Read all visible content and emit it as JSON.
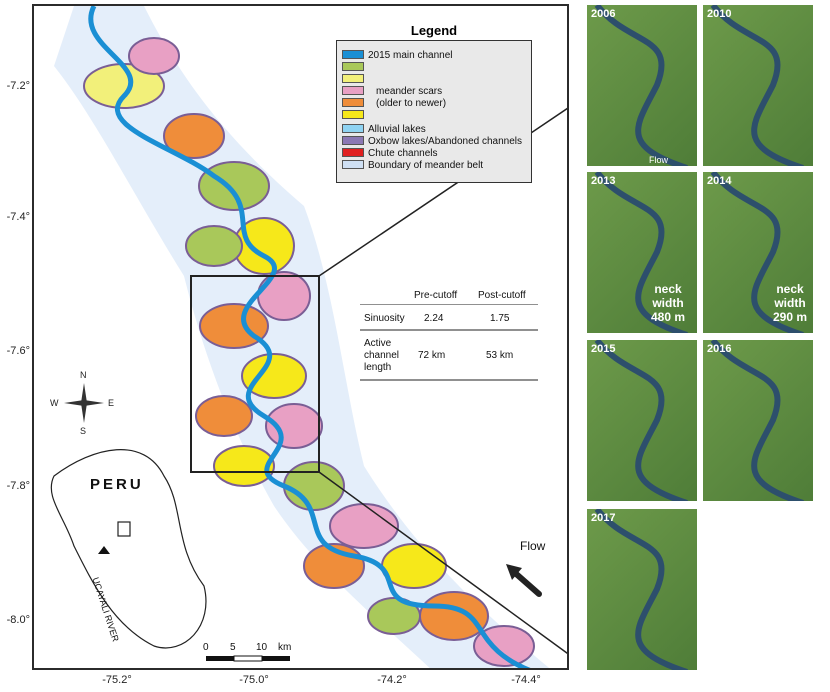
{
  "legend": {
    "title": "Legend",
    "items": [
      {
        "label": "2015 main channel",
        "color": "#1a8fd4"
      },
      {
        "label": "meander scars",
        "color": "#a9c85a"
      },
      {
        "label": "(older to newer)",
        "color": "#e8a0c4"
      },
      {
        "label": "Alluvial lakes",
        "color": "#8fd3f2"
      },
      {
        "label": "Oxbow lakes/Abandoned channels",
        "color": "#8b78b4"
      },
      {
        "label": "Chute channels",
        "color": "#e02020"
      },
      {
        "label": "Boundary of meander belt",
        "color": "#cfe0f4"
      }
    ],
    "scar_colors": [
      "#a9c85a",
      "#f2f07a",
      "#e8a0c4",
      "#ef8d3a",
      "#f6e81a"
    ]
  },
  "stats": {
    "col1": "Pre-cutoff",
    "col2": "Post-cutoff",
    "rows": [
      {
        "label": "Sinuosity",
        "pre": "2.24",
        "post": "1.75"
      },
      {
        "label": "Active channel length",
        "pre": "72 km",
        "post": "53 km"
      }
    ],
    "row2_lines": [
      "Active",
      "channel",
      "length"
    ]
  },
  "axes": {
    "y_ticks": [
      "-7.2°",
      "-7.4°",
      "-7.6°",
      "-7.8°",
      "-8.0°"
    ],
    "x_ticks": [
      "-75.2°",
      "-75.0°",
      "-74.2°",
      "-74.4°"
    ]
  },
  "inset": {
    "country": "PERU",
    "river": "UCAYALI RIVER"
  },
  "compass": {
    "n": "N",
    "s": "S",
    "e": "E",
    "w": "W"
  },
  "flow_label": "Flow",
  "scale": {
    "labels": [
      "0",
      "5",
      "10"
    ],
    "unit": "km"
  },
  "panels": [
    {
      "year": "2006",
      "flow": "Flow"
    },
    {
      "year": "2010"
    },
    {
      "year": "2013",
      "neck": [
        "neck",
        "width",
        "480 m"
      ]
    },
    {
      "year": "2014",
      "neck": [
        "neck",
        "width",
        "290 m"
      ]
    },
    {
      "year": "2015"
    },
    {
      "year": "2016"
    },
    {
      "year": "2017"
    }
  ]
}
